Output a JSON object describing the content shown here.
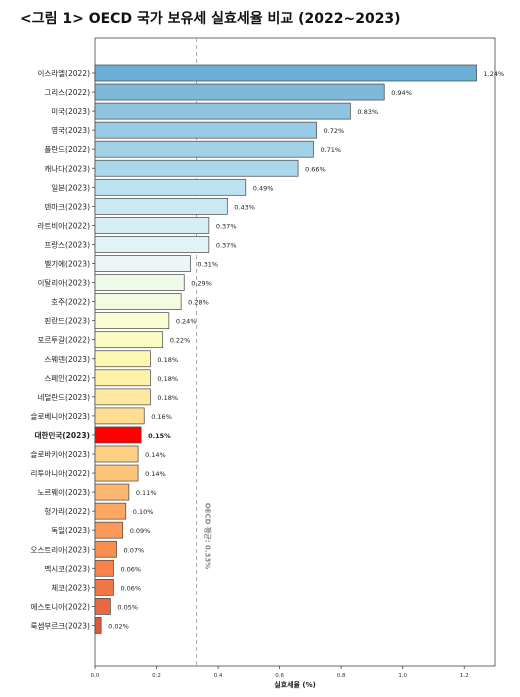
{
  "title": "<그림 1> OECD 국가 보유세 실효세율 비교 (2022~2023)",
  "chart_data": {
    "type": "bar",
    "orientation": "horizontal",
    "title": "<그림 1> OECD 국가 보유세 실효세율 비교 (2022~2023)",
    "xlabel": "실효세율 (%)",
    "ylabel": "",
    "xlim": [
      0,
      1.3
    ],
    "xticks": [
      "0.0",
      "0.2",
      "0.4",
      "0.6",
      "0.8",
      "1.0",
      "1.2"
    ],
    "grid": false,
    "highlight": "대한민국(2023)",
    "highlight_color": "#ff0000",
    "reference_line": {
      "value": 0.33,
      "label": "OECD 평균: 0.33%"
    },
    "categories": [
      "이스라엘(2022)",
      "그리스(2022)",
      "미국(2023)",
      "영국(2023)",
      "폴란드(2022)",
      "캐나다(2023)",
      "일본(2023)",
      "덴마크(2023)",
      "라트비아(2022)",
      "프랑스(2023)",
      "벨기에(2023)",
      "이탈리아(2023)",
      "호주(2022)",
      "핀란드(2023)",
      "포르투갈(2022)",
      "스웨덴(2023)",
      "스페인(2022)",
      "네덜란드(2023)",
      "슬로베니아(2023)",
      "대한민국(2023)",
      "슬로바키아(2023)",
      "리투아니아(2022)",
      "노르웨이(2023)",
      "헝가리(2022)",
      "독일(2023)",
      "오스트리아(2023)",
      "멕시코(2023)",
      "체코(2023)",
      "에스토니아(2022)",
      "룩셈부르크(2023)"
    ],
    "values": [
      1.24,
      0.94,
      0.83,
      0.72,
      0.71,
      0.66,
      0.49,
      0.43,
      0.37,
      0.37,
      0.31,
      0.29,
      0.28,
      0.24,
      0.22,
      0.18,
      0.18,
      0.18,
      0.16,
      0.15,
      0.14,
      0.14,
      0.11,
      0.1,
      0.09,
      0.07,
      0.06,
      0.06,
      0.05,
      0.02
    ],
    "value_labels": [
      "1.24%",
      "0.94%",
      "0.83%",
      "0.72%",
      "0.71%",
      "0.66%",
      "0.49%",
      "0.43%",
      "0.37%",
      "0.37%",
      "0.31%",
      "0.29%",
      "0.28%",
      "0.24%",
      "0.22%",
      "0.18%",
      "0.18%",
      "0.18%",
      "0.16%",
      "0.15%",
      "0.14%",
      "0.14%",
      "0.11%",
      "0.10%",
      "0.09%",
      "0.07%",
      "0.06%",
      "0.06%",
      "0.05%",
      "0.02%"
    ],
    "colors": [
      "#6baed6",
      "#7fb8db",
      "#8fc3e0",
      "#99cbe4",
      "#a3d2e8",
      "#abd7ea",
      "#bde2f1",
      "#cbe9f4",
      "#d6eff7",
      "#e0f4f8",
      "#eaf7f5",
      "#eefaea",
      "#f3fbe0",
      "#f8fdd3",
      "#fbfbc4",
      "#fdf7b4",
      "#fef2ab",
      "#fee9a0",
      "#fedd92",
      "#ff0000",
      "#fdd086",
      "#fdc47a",
      "#fdb76e",
      "#fca862",
      "#fb9a58",
      "#f88f50",
      "#f5834a",
      "#f17645",
      "#ea6840",
      "#de5a3b"
    ]
  }
}
